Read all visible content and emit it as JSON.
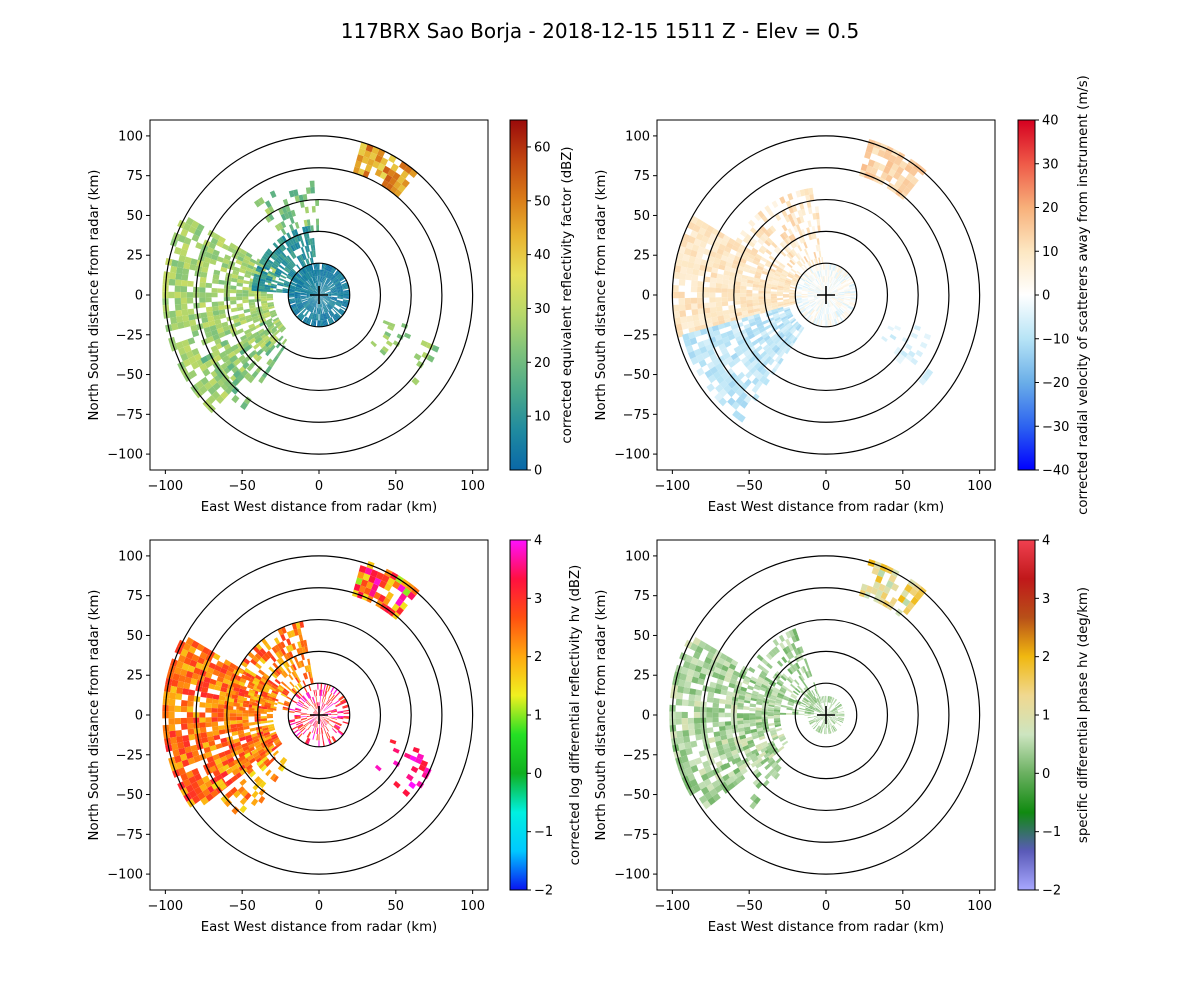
{
  "figure": {
    "title": "117BRX Sao Borja - 2018-12-15 1511 Z -  Elev = 0.5"
  },
  "chart_data": [
    {
      "type": "heatmap",
      "panel": "top-left",
      "field": "reflectivity",
      "xlabel": "East West distance from radar (km)",
      "ylabel": "North South distance from radar (km)",
      "xlim": [
        -110,
        110
      ],
      "ylim": [
        -110,
        110
      ],
      "xticks": [
        -100,
        -50,
        0,
        50,
        100
      ],
      "yticks": [
        -100,
        -75,
        -50,
        -25,
        0,
        25,
        50,
        75,
        100
      ],
      "range_rings_km": [
        20,
        40,
        60,
        80,
        100
      ],
      "colorbar": {
        "label": "corrected equivalent reflectivity factor (dBZ)",
        "range": [
          0,
          65
        ],
        "ticks": [
          0,
          10,
          20,
          30,
          40,
          50,
          60
        ],
        "colors": [
          "#0a68a8",
          "#1f8aa0",
          "#4aa88a",
          "#7cc17c",
          "#b7d86a",
          "#e8e15a",
          "#e8b430",
          "#d97a18",
          "#c04410",
          "#9a0a0a"
        ]
      }
    },
    {
      "type": "heatmap",
      "panel": "top-right",
      "field": "velocity",
      "xlabel": "East West distance from radar (km)",
      "ylabel": "North South distance from radar (km)",
      "xlim": [
        -110,
        110
      ],
      "ylim": [
        -110,
        110
      ],
      "xticks": [
        -100,
        -50,
        0,
        50,
        100
      ],
      "yticks": [
        -100,
        -75,
        -50,
        -25,
        0,
        25,
        50,
        75,
        100
      ],
      "range_rings_km": [
        20,
        40,
        60,
        80,
        100
      ],
      "colorbar": {
        "label": "corrected radial velocity of scatterers away from instrument (m/s)",
        "range": [
          -40,
          40
        ],
        "ticks": [
          -40,
          -30,
          -20,
          -10,
          0,
          10,
          20,
          30,
          40
        ],
        "colors": [
          "#0000ff",
          "#2d63f0",
          "#6aaee8",
          "#b7e4f6",
          "#ffffff",
          "#fde7c2",
          "#f7b07a",
          "#ef5a48",
          "#d50020"
        ]
      }
    },
    {
      "type": "heatmap",
      "panel": "bottom-left",
      "field": "differential_reflectivity",
      "xlabel": "East West distance from radar (km)",
      "ylabel": "North South distance from radar (km)",
      "xlim": [
        -110,
        110
      ],
      "ylim": [
        -110,
        110
      ],
      "xticks": [
        -100,
        -50,
        0,
        50,
        100
      ],
      "yticks": [
        -100,
        -75,
        -50,
        -25,
        0,
        25,
        50,
        75,
        100
      ],
      "range_rings_km": [
        20,
        40,
        60,
        80,
        100
      ],
      "colorbar": {
        "label": "corrected log differential reflectivity hv (dBZ)",
        "range": [
          -2,
          4
        ],
        "ticks": [
          -2,
          -1,
          0,
          1,
          2,
          3,
          4
        ],
        "colors": [
          "#0a14f0",
          "#00c8ff",
          "#00f0e0",
          "#10b020",
          "#24e024",
          "#f0f020",
          "#ffaa10",
          "#ff5010",
          "#ff1040",
          "#ff10ff"
        ]
      }
    },
    {
      "type": "heatmap",
      "panel": "bottom-right",
      "field": "specific_differential_phase",
      "xlabel": "East West distance from radar (km)",
      "ylabel": "North South distance from radar (km)",
      "xlim": [
        -110,
        110
      ],
      "ylim": [
        -110,
        110
      ],
      "xticks": [
        -100,
        -50,
        0,
        50,
        100
      ],
      "yticks": [
        -100,
        -75,
        -50,
        -25,
        0,
        25,
        50,
        75,
        100
      ],
      "range_rings_km": [
        20,
        40,
        60,
        80,
        100
      ],
      "colorbar": {
        "label": "specific differential phase hv (deg/km)",
        "range": [
          -2,
          4
        ],
        "ticks": [
          -2,
          -1,
          0,
          1,
          2,
          3,
          4
        ],
        "colors": [
          "#a8a8ff",
          "#5a5ab8",
          "#108a10",
          "#6ab060",
          "#cde5c0",
          "#f0d890",
          "#f0b810",
          "#b85018",
          "#c0181a",
          "#f04050"
        ]
      }
    }
  ]
}
